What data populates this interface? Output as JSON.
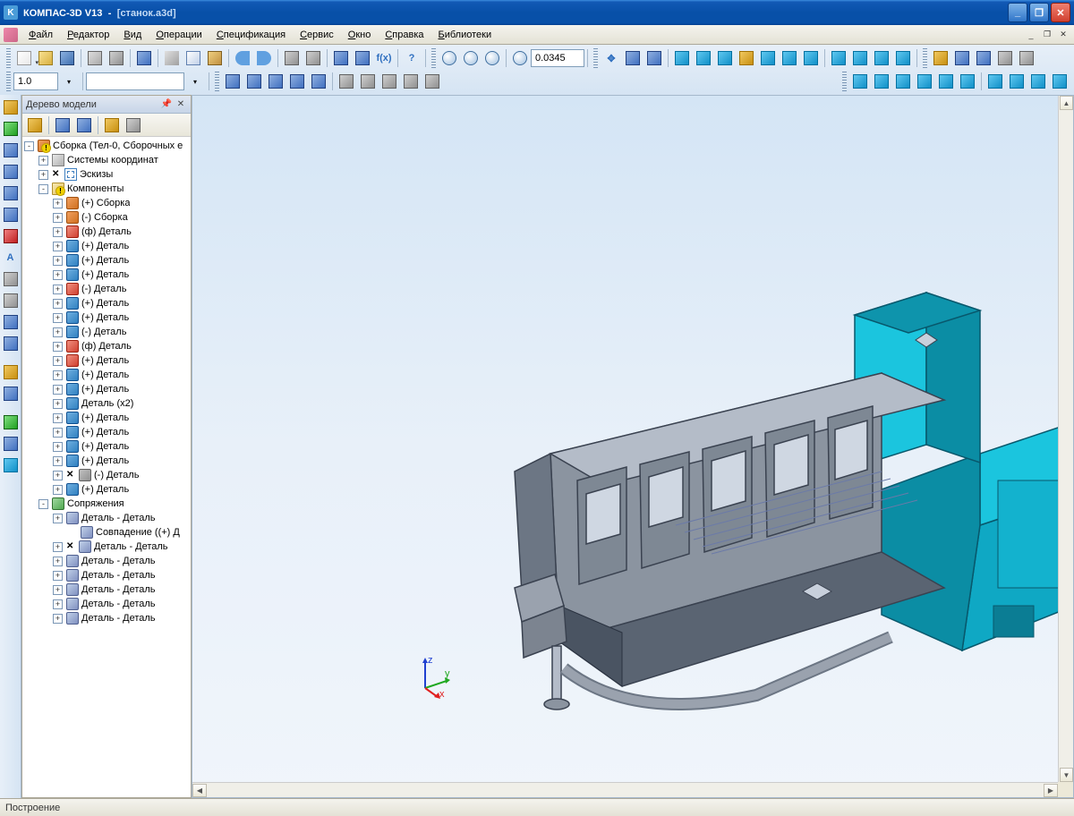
{
  "colors": {
    "xp_title_start": "#3c8cde",
    "xp_title_end": "#0850a8",
    "viewport_bg_top": "#d4e5f5",
    "viewport_bg_bottom": "#f0f5fb",
    "model_cyan": "#1bc5de",
    "model_dark_teal": "#0b7d94",
    "model_gray": "#8b94a0",
    "model_dark_gray": "#5a6472",
    "model_light_gray": "#b4bcc8",
    "axis_x": "#e02020",
    "axis_y": "#20a820",
    "axis_z": "#2040d0"
  },
  "title": {
    "app": "КОМПАС-3D V13",
    "doc": "[станок.a3d]"
  },
  "menu": [
    "Файл",
    "Редактор",
    "Вид",
    "Операции",
    "Спецификация",
    "Сервис",
    "Окно",
    "Справка",
    "Библиотеки"
  ],
  "toolbar1": {
    "scale_value": "1.0",
    "zoom_value": "0.0345"
  },
  "panel": {
    "title": "Дерево модели"
  },
  "tree": {
    "root": {
      "label": "Сборка (Тел-0, Сборочных е",
      "icon": "i-assy i-warn"
    },
    "l1": [
      {
        "exp": "+",
        "label": "Системы координат",
        "icon": "i-coord",
        "indent": 1,
        "pre": ""
      },
      {
        "exp": "+",
        "label": "Эскизы",
        "icon": "i-sketch",
        "indent": 1,
        "pre": "cross"
      },
      {
        "exp": "-",
        "label": "Компоненты",
        "icon": "i-folder i-warn",
        "indent": 1,
        "pre": ""
      },
      {
        "exp": "+",
        "label": "(+) Сборка",
        "icon": "i-assy",
        "indent": 2
      },
      {
        "exp": "+",
        "label": "(-) Сборка",
        "icon": "i-assy",
        "indent": 2
      },
      {
        "exp": "+",
        "label": "(ф) Деталь",
        "icon": "i-partr",
        "indent": 2
      },
      {
        "exp": "+",
        "label": "(+) Деталь",
        "icon": "i-part",
        "indent": 2
      },
      {
        "exp": "+",
        "label": "(+) Деталь",
        "icon": "i-part",
        "indent": 2
      },
      {
        "exp": "+",
        "label": "(+) Деталь",
        "icon": "i-part",
        "indent": 2
      },
      {
        "exp": "+",
        "label": "(-) Деталь",
        "icon": "i-partr",
        "indent": 2
      },
      {
        "exp": "+",
        "label": "(+) Деталь",
        "icon": "i-part",
        "indent": 2
      },
      {
        "exp": "+",
        "label": "(+) Деталь",
        "icon": "i-part",
        "indent": 2
      },
      {
        "exp": "+",
        "label": "(-) Деталь",
        "icon": "i-part",
        "indent": 2
      },
      {
        "exp": "+",
        "label": "(ф) Деталь",
        "icon": "i-partr",
        "indent": 2
      },
      {
        "exp": "+",
        "label": "(+) Деталь",
        "icon": "i-partr",
        "indent": 2
      },
      {
        "exp": "+",
        "label": "(+) Деталь",
        "icon": "i-part",
        "indent": 2
      },
      {
        "exp": "+",
        "label": "(+) Деталь",
        "icon": "i-part",
        "indent": 2
      },
      {
        "exp": "+",
        "label": "Деталь (x2)",
        "icon": "i-part",
        "indent": 2
      },
      {
        "exp": "+",
        "label": "(+) Деталь",
        "icon": "i-part",
        "indent": 2
      },
      {
        "exp": "+",
        "label": "(+) Деталь",
        "icon": "i-part",
        "indent": 2
      },
      {
        "exp": "+",
        "label": "(+) Деталь",
        "icon": "i-part",
        "indent": 2
      },
      {
        "exp": "+",
        "label": "(+) Деталь",
        "icon": "i-part",
        "indent": 2
      },
      {
        "exp": "+",
        "label": "(-) Деталь",
        "icon": "i-part-hidden",
        "indent": 2,
        "pre": "cross"
      },
      {
        "exp": "+",
        "label": "(+) Деталь",
        "icon": "i-part",
        "indent": 2
      },
      {
        "exp": "-",
        "label": "Сопряжения",
        "icon": "i-mate",
        "indent": 1
      },
      {
        "exp": "+",
        "label": "Деталь - Деталь",
        "icon": "i-matelink",
        "indent": 2
      },
      {
        "exp": "",
        "label": "Совпадение ((+) Д",
        "icon": "i-matelink",
        "indent": 3
      },
      {
        "exp": "+",
        "label": "Деталь - Деталь",
        "icon": "i-matelink",
        "indent": 2,
        "pre": "cross"
      },
      {
        "exp": "+",
        "label": "Деталь - Деталь",
        "icon": "i-matelink",
        "indent": 2
      },
      {
        "exp": "+",
        "label": "Деталь - Деталь",
        "icon": "i-matelink",
        "indent": 2
      },
      {
        "exp": "+",
        "label": "Деталь - Деталь",
        "icon": "i-matelink",
        "indent": 2
      },
      {
        "exp": "+",
        "label": "Деталь - Деталь",
        "icon": "i-matelink",
        "indent": 2
      },
      {
        "exp": "+",
        "label": "Деталь - Деталь",
        "icon": "i-matelink",
        "indent": 2
      }
    ]
  },
  "axis_labels": {
    "x": "x",
    "y": "y",
    "z": "z"
  },
  "status": "Построение"
}
